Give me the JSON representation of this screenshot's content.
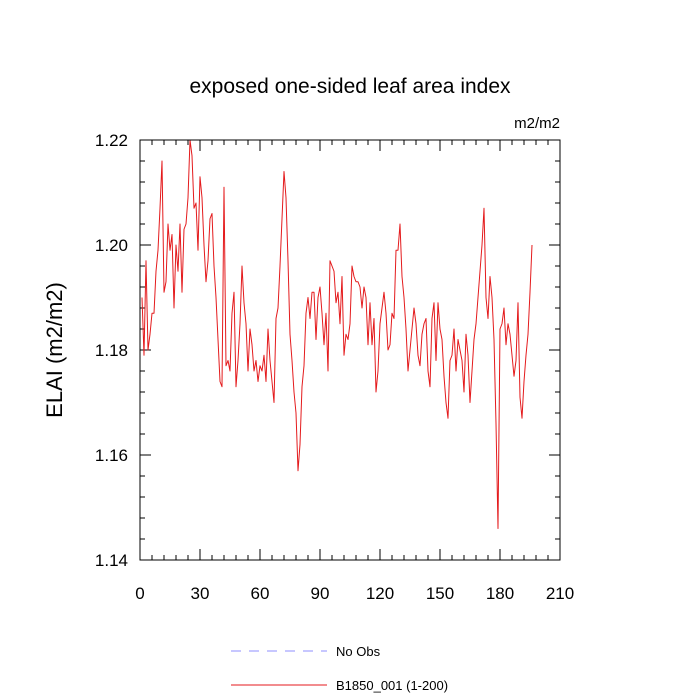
{
  "chart_data": {
    "type": "line",
    "title": "exposed one-sided leaf area index",
    "units_label": "m2/m2",
    "ylabel": "ELAI  (m2/m2)",
    "xlabel": "",
    "xlim": [
      0,
      210
    ],
    "ylim": [
      1.14,
      1.22
    ],
    "x_ticks": [
      0,
      30,
      60,
      90,
      120,
      150,
      180,
      210
    ],
    "x_tick_labels": [
      "0",
      "30",
      "60",
      "90",
      "120",
      "150",
      "180",
      "210"
    ],
    "y_ticks": [
      1.14,
      1.16,
      1.18,
      1.2,
      1.22
    ],
    "y_tick_labels": [
      "1.14",
      "1.16",
      "1.18",
      "1.20",
      "1.22"
    ],
    "grid": false,
    "legend_position": "bottom",
    "series": [
      {
        "name": "B1850_001 (1-200)",
        "color": "#e41a1c",
        "dash": "solid",
        "x_start": 1,
        "values": [
          1.19,
          1.179,
          1.197,
          1.18,
          1.183,
          1.187,
          1.187,
          1.195,
          1.199,
          1.207,
          1.216,
          1.191,
          1.193,
          1.204,
          1.199,
          1.202,
          1.188,
          1.2,
          1.195,
          1.204,
          1.191,
          1.203,
          1.204,
          1.209,
          1.22,
          1.217,
          1.207,
          1.208,
          1.199,
          1.213,
          1.209,
          1.2,
          1.193,
          1.197,
          1.205,
          1.206,
          1.196,
          1.19,
          1.182,
          1.174,
          1.173,
          1.211,
          1.177,
          1.178,
          1.176,
          1.187,
          1.191,
          1.173,
          1.178,
          1.185,
          1.196,
          1.189,
          1.185,
          1.176,
          1.184,
          1.181,
          1.176,
          1.178,
          1.174,
          1.177,
          1.176,
          1.179,
          1.174,
          1.184,
          1.178,
          1.174,
          1.17,
          1.186,
          1.188,
          1.196,
          1.205,
          1.214,
          1.209,
          1.197,
          1.183,
          1.178,
          1.172,
          1.168,
          1.157,
          1.162,
          1.173,
          1.177,
          1.187,
          1.19,
          1.186,
          1.191,
          1.191,
          1.182,
          1.19,
          1.192,
          1.187,
          1.181,
          1.187,
          1.176,
          1.197,
          1.196,
          1.195,
          1.189,
          1.191,
          1.185,
          1.194,
          1.179,
          1.183,
          1.182,
          1.185,
          1.196,
          1.194,
          1.193,
          1.193,
          1.192,
          1.188,
          1.192,
          1.19,
          1.181,
          1.189,
          1.181,
          1.186,
          1.172,
          1.176,
          1.185,
          1.188,
          1.191,
          1.187,
          1.18,
          1.181,
          1.187,
          1.186,
          1.199,
          1.199,
          1.204,
          1.194,
          1.19,
          1.184,
          1.176,
          1.18,
          1.184,
          1.188,
          1.185,
          1.179,
          1.177,
          1.183,
          1.185,
          1.186,
          1.176,
          1.173,
          1.186,
          1.189,
          1.178,
          1.189,
          1.184,
          1.182,
          1.175,
          1.17,
          1.167,
          1.178,
          1.179,
          1.184,
          1.176,
          1.182,
          1.18,
          1.178,
          1.172,
          1.183,
          1.179,
          1.17,
          1.176,
          1.182,
          1.185,
          1.19,
          1.195,
          1.2,
          1.207,
          1.19,
          1.186,
          1.194,
          1.19,
          1.182,
          1.166,
          1.146,
          1.184,
          1.185,
          1.188,
          1.181,
          1.185,
          1.183,
          1.179,
          1.175,
          1.178,
          1.189,
          1.171,
          1.167,
          1.174,
          1.179,
          1.183,
          1.191,
          1.2
        ]
      }
    ],
    "legend": [
      {
        "label": "No Obs",
        "color": "#8f8fff",
        "dash": "dashed"
      },
      {
        "label": "B1850_001 (1-200)",
        "color": "#e41a1c",
        "dash": "solid"
      }
    ]
  }
}
